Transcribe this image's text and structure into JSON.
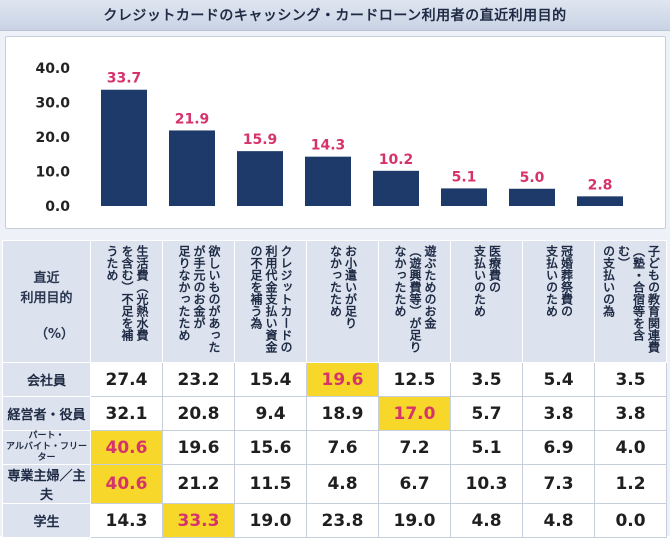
{
  "title": "クレジットカードのキャッシング・カードローン利用者の直近利用目的",
  "colors": {
    "bar": "#1d3a6b",
    "label": "#d6336c",
    "highlight": "#f7d82a"
  },
  "chart_data": {
    "type": "bar",
    "title": "クレジットカードのキャッシング・カードローン利用者の直近利用目的",
    "categories": [
      "生活費（光熱水費を含む）不足を補うため",
      "欲しいものがあったが手元のお金が足りなかったため",
      "クレジットカードの利用代金支払い資金の不足を補う為",
      "お小遣いが足りなかったため",
      "遊ぶためのお金（遊興費等）が足りなかったため",
      "医療費の支払いのため",
      "冠婚葬祭費の支払いのため",
      "子どもの教育関連費（塾・合宿等を含む）の支払いの為"
    ],
    "values": [
      33.7,
      21.9,
      15.9,
      14.3,
      10.2,
      5.1,
      5.0,
      2.8
    ],
    "value_labels": [
      "33.7",
      "21.9",
      "15.9",
      "14.3",
      "10.2",
      "5.1",
      "5.0",
      "2.8"
    ],
    "yticks": [
      "0.0",
      "10.0",
      "20.0",
      "30.0",
      "40.0"
    ],
    "ylim": [
      0,
      40
    ],
    "grid": false,
    "legend": "none"
  },
  "table": {
    "corner_title_1": "直近",
    "corner_title_2": "利用目的",
    "corner_unit": "（%）",
    "columns": [
      "生活費（光熱水費\nを含む）不足を補\nうため",
      "欲しいものがあった\nが手元のお金が\n足りなかったため",
      "クレジットカードの\n利用代金支払い資金\nの不足を補う為",
      "お小遣いが足り\nなかったため",
      "遊ぶためのお金\n（遊興費等）が足り\nなかったため",
      "医療費の\n支払いのため",
      "冠婚葬祭費の\n支払いのため",
      "子どもの教育関連費\n（塾・合宿等を含む）\nの支払いの為"
    ],
    "rows": [
      {
        "label": "会社員",
        "small": false,
        "values": [
          "27.4",
          "23.2",
          "15.4",
          "19.6",
          "12.5",
          "3.5",
          "5.4",
          "3.5"
        ],
        "highlight": [
          3
        ]
      },
      {
        "label": "経営者・役員",
        "small": false,
        "values": [
          "32.1",
          "20.8",
          "9.4",
          "18.9",
          "17.0",
          "5.7",
          "3.8",
          "3.8"
        ],
        "highlight": [
          4
        ]
      },
      {
        "label": "パート・\nアルバイト・フリーター",
        "small": true,
        "values": [
          "40.6",
          "19.6",
          "15.6",
          "7.6",
          "7.2",
          "5.1",
          "6.9",
          "4.0"
        ],
        "highlight": [
          0
        ]
      },
      {
        "label": "専業主婦／主夫",
        "small": false,
        "values": [
          "40.6",
          "21.2",
          "11.5",
          "4.8",
          "6.7",
          "10.3",
          "7.3",
          "1.2"
        ],
        "highlight": [
          0
        ]
      },
      {
        "label": "学生",
        "small": false,
        "values": [
          "14.3",
          "33.3",
          "19.0",
          "23.8",
          "19.0",
          "4.8",
          "4.8",
          "0.0"
        ],
        "highlight": [
          1
        ]
      }
    ]
  }
}
